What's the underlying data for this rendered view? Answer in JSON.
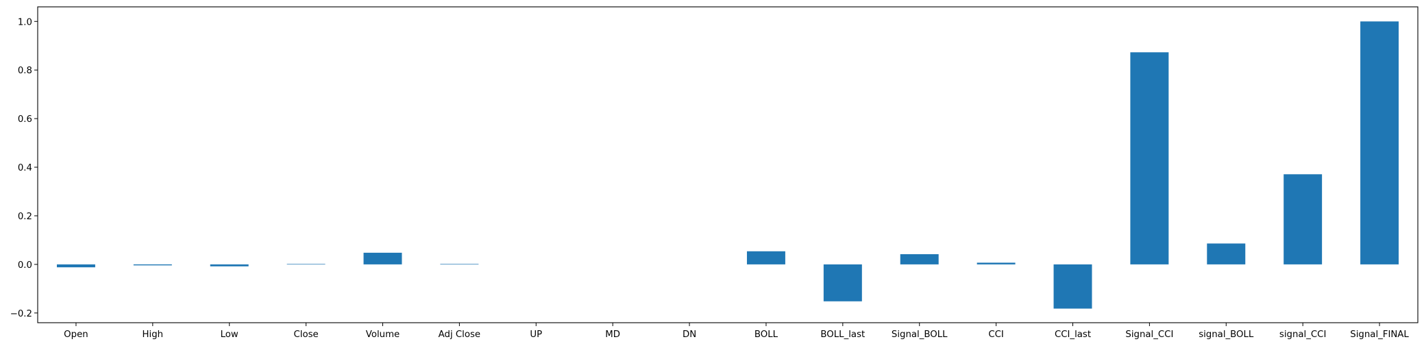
{
  "chart_data": {
    "type": "bar",
    "categories": [
      "Open",
      "High",
      "Low",
      "Close",
      "Volume",
      "Adj Close",
      "UP",
      "MD",
      "DN",
      "BOLL",
      "BOLL_last",
      "Signal_BOLL",
      "CCI",
      "CCI_last",
      "Signal_CCI",
      "signal_BOLL",
      "signal_CCI",
      "Signal_FINAL"
    ],
    "values": [
      -0.012,
      -0.004,
      -0.008,
      0.002,
      0.048,
      0.002,
      0.0,
      0.0,
      0.0,
      0.054,
      -0.152,
      0.042,
      0.007,
      -0.182,
      0.873,
      0.086,
      0.371,
      1.0
    ],
    "title": "",
    "xlabel": "",
    "ylabel": "",
    "ylim": [
      -0.24,
      1.06
    ],
    "yticks": [
      -0.2,
      0.0,
      0.2,
      0.4,
      0.6,
      0.8,
      1.0
    ],
    "ytick_labels": [
      "−0.2",
      "0.0",
      "0.2",
      "0.4",
      "0.6",
      "0.8",
      "1.0"
    ],
    "bar_color": "#1f77b4",
    "grid": false,
    "legend": "none"
  }
}
